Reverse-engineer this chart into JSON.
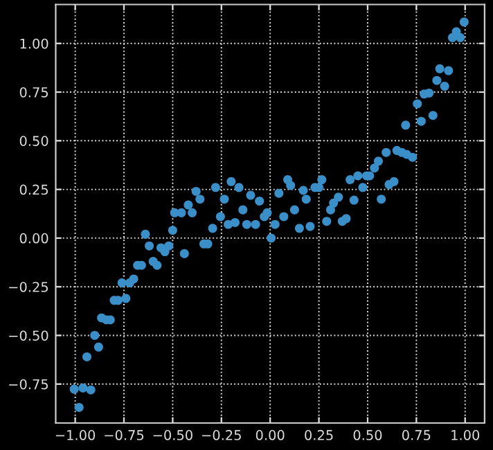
{
  "chart_data": {
    "type": "scatter",
    "xlim": [
      -1.1,
      1.1
    ],
    "ylim": [
      -0.95,
      1.2
    ],
    "xticks": [
      {
        "value": -1.0,
        "label": "−1.00"
      },
      {
        "value": -0.75,
        "label": "−0.75"
      },
      {
        "value": -0.5,
        "label": "−0.50"
      },
      {
        "value": -0.25,
        "label": "−0.25"
      },
      {
        "value": 0.0,
        "label": "0.00"
      },
      {
        "value": 0.25,
        "label": "0.25"
      },
      {
        "value": 0.5,
        "label": "0.50"
      },
      {
        "value": 0.75,
        "label": "0.75"
      },
      {
        "value": 1.0,
        "label": "1.00"
      }
    ],
    "yticks": [
      {
        "value": -0.75,
        "label": "−0.75"
      },
      {
        "value": -0.5,
        "label": "−0.50"
      },
      {
        "value": -0.25,
        "label": "−0.25"
      },
      {
        "value": 0.0,
        "label": "0.00"
      },
      {
        "value": 0.25,
        "label": "0.25"
      },
      {
        "value": 0.5,
        "label": "0.50"
      },
      {
        "value": 0.75,
        "label": "0.75"
      },
      {
        "value": 1.0,
        "label": "1.00"
      }
    ],
    "grid": true,
    "marker": "circle",
    "series": [
      {
        "color": "#3a8fc8",
        "x": [
          -1.005,
          -0.98,
          -0.96,
          -0.92,
          -0.94,
          -0.9,
          -0.88,
          -0.865,
          -0.84,
          -0.82,
          -0.8,
          -0.78,
          -0.76,
          -0.74,
          -0.72,
          -0.7,
          -0.68,
          -0.66,
          -0.64,
          -0.62,
          -0.6,
          -0.58,
          -0.56,
          -0.54,
          -0.52,
          -0.5,
          -0.44,
          -0.34,
          -0.32,
          -0.295,
          -0.49,
          -0.455,
          -0.42,
          -0.4,
          -0.38,
          -0.36,
          -0.28,
          -0.255,
          -0.235,
          -0.215,
          -0.2,
          -0.18,
          -0.16,
          -0.14,
          -0.12,
          -0.1,
          -0.055,
          -0.075,
          -0.03,
          -0.015,
          0.005,
          0.025,
          0.045,
          0.07,
          0.09,
          0.105,
          0.125,
          0.15,
          0.17,
          0.185,
          0.205,
          0.23,
          0.25,
          0.265,
          0.29,
          0.31,
          0.325,
          0.35,
          0.37,
          0.39,
          0.41,
          0.43,
          0.45,
          0.475,
          0.495,
          0.51,
          0.535,
          0.555,
          0.57,
          0.595,
          0.61,
          0.635,
          0.65,
          0.675,
          0.7,
          0.73,
          0.695,
          0.755,
          0.775,
          0.79,
          0.815,
          0.835,
          0.855,
          0.87,
          0.895,
          0.915,
          0.935,
          0.955,
          0.975,
          0.995
        ],
        "values": [
          -0.776,
          -0.87,
          -0.77,
          -0.78,
          -0.61,
          -0.5,
          -0.56,
          -0.41,
          -0.42,
          -0.42,
          -0.32,
          -0.32,
          -0.23,
          -0.31,
          -0.23,
          -0.21,
          -0.14,
          -0.14,
          0.02,
          -0.04,
          -0.12,
          -0.14,
          -0.05,
          -0.07,
          -0.04,
          0.04,
          -0.08,
          -0.03,
          -0.03,
          0.05,
          0.13,
          0.13,
          0.17,
          0.13,
          0.24,
          0.2,
          0.26,
          0.11,
          0.2,
          0.07,
          0.29,
          0.08,
          0.26,
          0.145,
          0.07,
          0.22,
          0.19,
          0.07,
          0.11,
          0.13,
          0.0,
          0.07,
          0.23,
          0.11,
          0.3,
          0.27,
          0.145,
          0.05,
          0.245,
          0.2,
          0.06,
          0.26,
          0.26,
          0.3,
          0.086,
          0.145,
          0.18,
          0.21,
          0.086,
          0.1,
          0.3,
          0.195,
          0.32,
          0.26,
          0.32,
          0.32,
          0.36,
          0.395,
          0.2,
          0.44,
          0.275,
          0.29,
          0.45,
          0.44,
          0.43,
          0.415,
          0.58,
          0.69,
          0.6,
          0.74,
          0.745,
          0.63,
          0.81,
          0.87,
          0.78,
          0.86,
          1.03,
          1.06,
          1.03,
          1.11
        ]
      }
    ]
  }
}
